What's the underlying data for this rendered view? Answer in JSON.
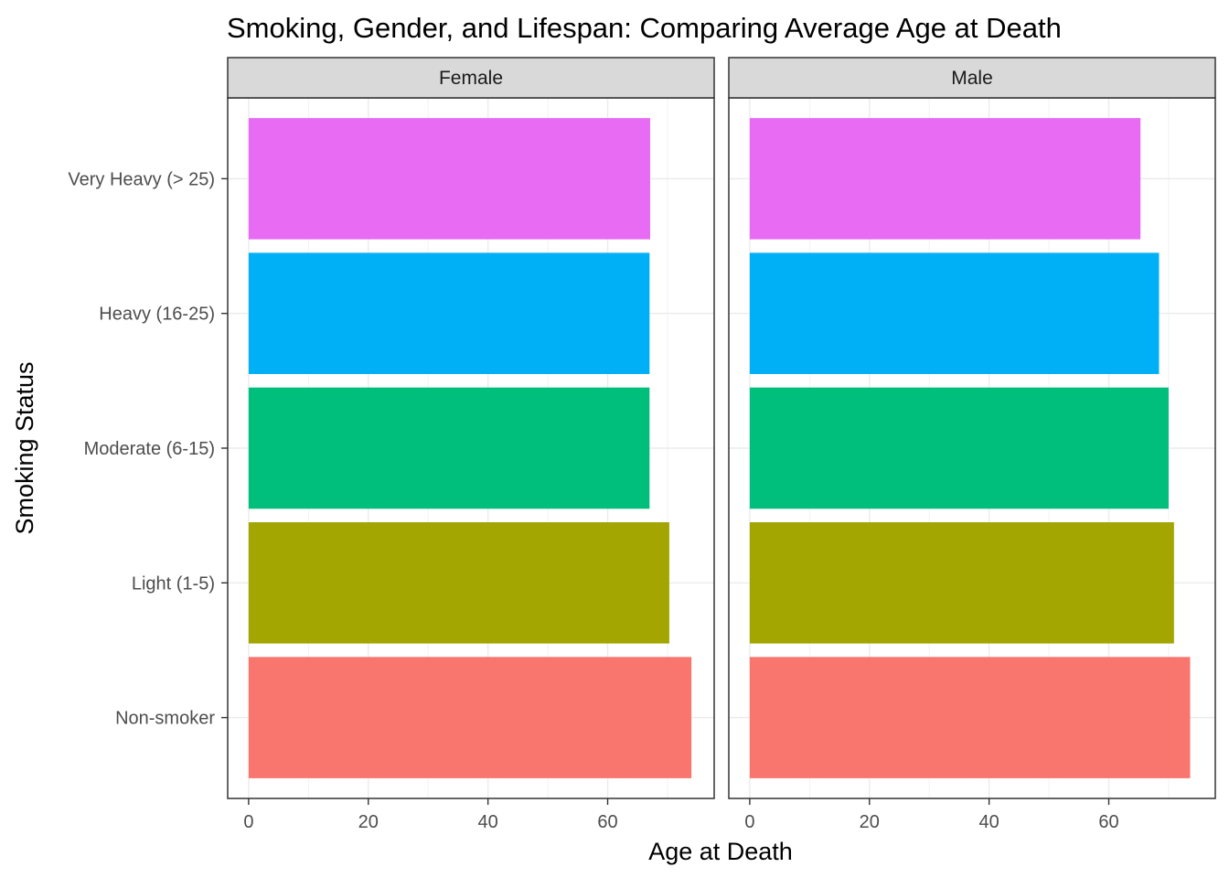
{
  "chart_data": {
    "type": "bar",
    "orientation": "horizontal",
    "title": "Smoking, Gender, and Lifespan: Comparing Average Age at Death",
    "xlabel": "Age at Death",
    "ylabel": "Smoking Status",
    "categories": [
      "Very Heavy (> 25)",
      "Heavy (16-25)",
      "Moderate (6-15)",
      "Light (1-5)",
      "Non-smoker"
    ],
    "category_colors": {
      "Very Heavy (> 25)": "#E76BF3",
      "Heavy (16-25)": "#00B0F6",
      "Moderate (6-15)": "#00BF7D",
      "Light (1-5)": "#A3A500",
      "Non-smoker": "#F8766D"
    },
    "xlim": [
      -3.5,
      77.8
    ],
    "xticks": [
      0,
      20,
      40,
      60
    ],
    "xtick_labels": [
      "0",
      "20",
      "40",
      "60"
    ],
    "grid": true,
    "panels": [
      {
        "facet": "Female",
        "values": [
          67.1,
          67.0,
          67.0,
          70.3,
          74.0
        ]
      },
      {
        "facet": "Male",
        "values": [
          65.3,
          68.4,
          70.0,
          70.9,
          73.6
        ]
      }
    ]
  }
}
